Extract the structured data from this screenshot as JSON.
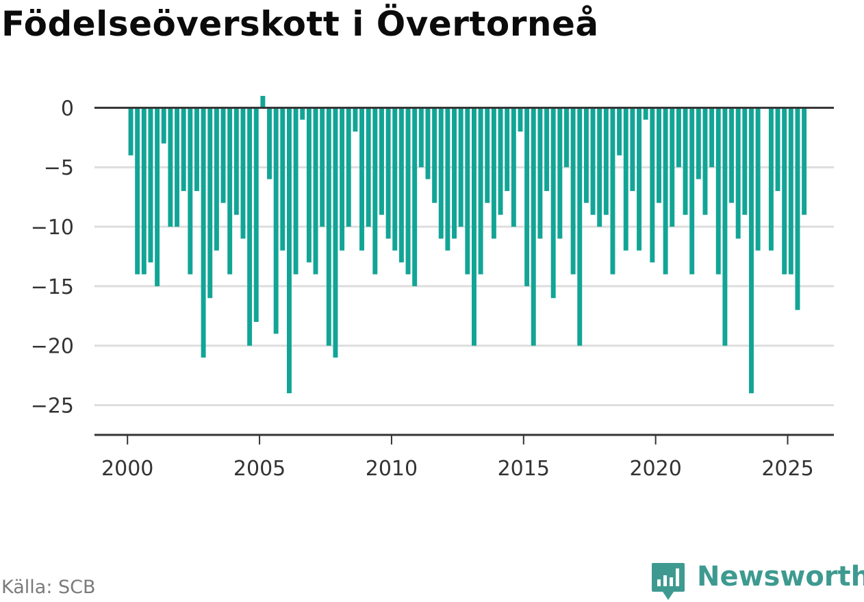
{
  "title": "Födelseöverskott i Övertorneå",
  "source": "Källa: SCB",
  "brand": {
    "name": "Newsworthy",
    "icon": "newsworthy-logo-icon"
  },
  "colors": {
    "bar": "#12a596",
    "brand": "#3e9a90",
    "grid": "#dddddd",
    "axis": "#333333"
  },
  "chart_data": {
    "type": "bar",
    "title": "Födelseöverskott i Övertorneå",
    "xlabel": "",
    "ylabel": "",
    "x_ticks": [
      2000,
      2005,
      2010,
      2015,
      2020,
      2025
    ],
    "y_ticks": [
      0,
      -5,
      -10,
      -15,
      -20,
      -25
    ],
    "y_tick_labels": [
      "0",
      "−5",
      "−10",
      "−15",
      "−20",
      "−25"
    ],
    "ylim": [
      -27.5,
      1
    ],
    "xlim": [
      1998.75,
      2026.75
    ],
    "grid": true,
    "start": {
      "year": 2000,
      "quarter": 1
    },
    "frequency": "quarterly",
    "values": [
      -4,
      -14,
      -14,
      -13,
      -15,
      -3,
      -10,
      -10,
      -7,
      -14,
      -7,
      -21,
      -16,
      -12,
      -8,
      -14,
      -9,
      -11,
      -20,
      -18,
      1,
      -6,
      -19,
      -12,
      -24,
      -14,
      -1,
      -13,
      -14,
      -10,
      -20,
      -21,
      -12,
      -10,
      -2,
      -12,
      -10,
      -14,
      -9,
      -11,
      -12,
      -13,
      -14,
      -15,
      -5,
      -6,
      -8,
      -11,
      -12,
      -11,
      -10,
      -14,
      -20,
      -14,
      -8,
      -11,
      -9,
      -7,
      -10,
      -2,
      -15,
      -20,
      -11,
      -7,
      -16,
      -11,
      -5,
      -14,
      -20,
      -8,
      -9,
      -10,
      -9,
      -14,
      -4,
      -12,
      -7,
      -12,
      -1,
      -13,
      -8,
      -14,
      -10,
      -5,
      -9,
      -14,
      -6,
      -9,
      -5,
      -14,
      -20,
      -8,
      -11,
      -9,
      -24,
      -12,
      0,
      -12,
      -7,
      -14,
      -14,
      -17,
      -9
    ]
  }
}
